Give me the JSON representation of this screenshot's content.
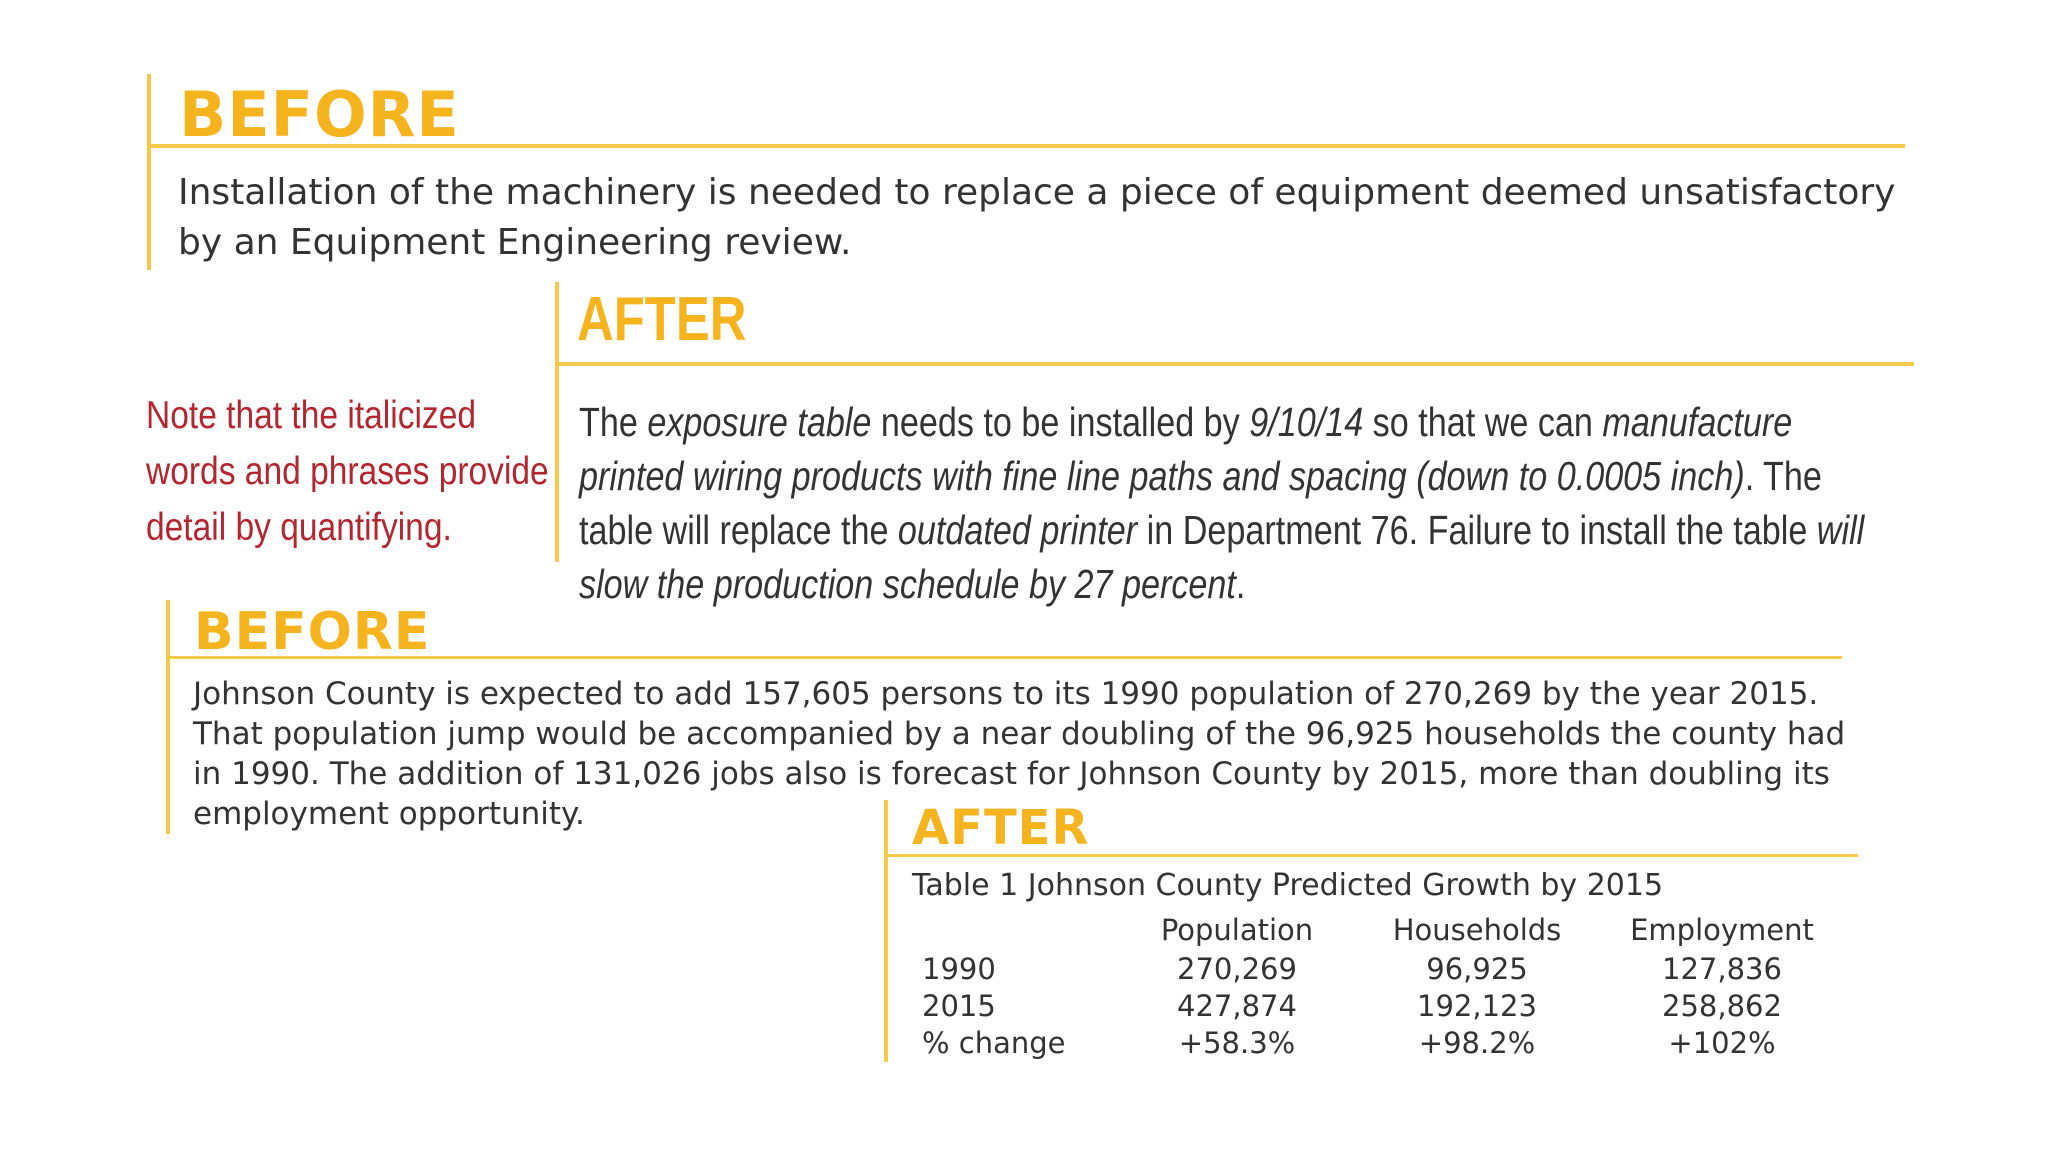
{
  "before_1": {
    "heading": "BEFORE",
    "text": "Installation of the machinery is needed to replace a piece of equipment deemed unsatisfactory by an Equipment Engineering review."
  },
  "note": {
    "lines": [
      "Note that the italicized",
      "words and phrases provide",
      "detail by quantifying."
    ]
  },
  "after_1": {
    "heading": "AFTER",
    "segments": [
      {
        "text": "The ",
        "italic": false
      },
      {
        "text": "exposure table",
        "italic": true
      },
      {
        "text": " needs to be installed by ",
        "italic": false
      },
      {
        "text": "9/10/14",
        "italic": true
      },
      {
        "text": " so that we can ",
        "italic": false
      },
      {
        "text": "manufacture printed wiring products with fine line paths and spacing (down to 0.0005 inch)",
        "italic": true
      },
      {
        "text": ". The table will replace the ",
        "italic": false
      },
      {
        "text": "outdated printer",
        "italic": true
      },
      {
        "text": " in Department 76. Failure to install the table ",
        "italic": false
      },
      {
        "text": "will slow the production schedule by 27 percent",
        "italic": true
      },
      {
        "text": ".",
        "italic": false
      }
    ]
  },
  "before_2": {
    "heading": "BEFORE",
    "text": "Johnson County is expected to add 157,605 persons to its 1990 population of 270,269 by the year 2015. That population jump would be accompanied by a near doubling of the 96,925 households the county had in 1990. The addition of 131,026 jobs also is forecast for Johnson County by 2015, more than doubling its employment opportunity."
  },
  "after_2": {
    "heading": "AFTER",
    "caption": "Table 1 Johnson County Predicted Growth by 2015",
    "columns": [
      "Population",
      "Households",
      "Employment"
    ],
    "rows": [
      {
        "label": "1990",
        "values": [
          "270,269",
          "96,925",
          "127,836"
        ]
      },
      {
        "label": "2015",
        "values": [
          "427,874",
          "192,123",
          "258,862"
        ]
      },
      {
        "label": "% change",
        "values": [
          "+58.3%",
          "+98.2%",
          "+102%"
        ]
      }
    ]
  },
  "colors": {
    "accent": "#f5b41e",
    "rule": "#f5c94a",
    "note": "#b3262f",
    "text": "#333333"
  }
}
